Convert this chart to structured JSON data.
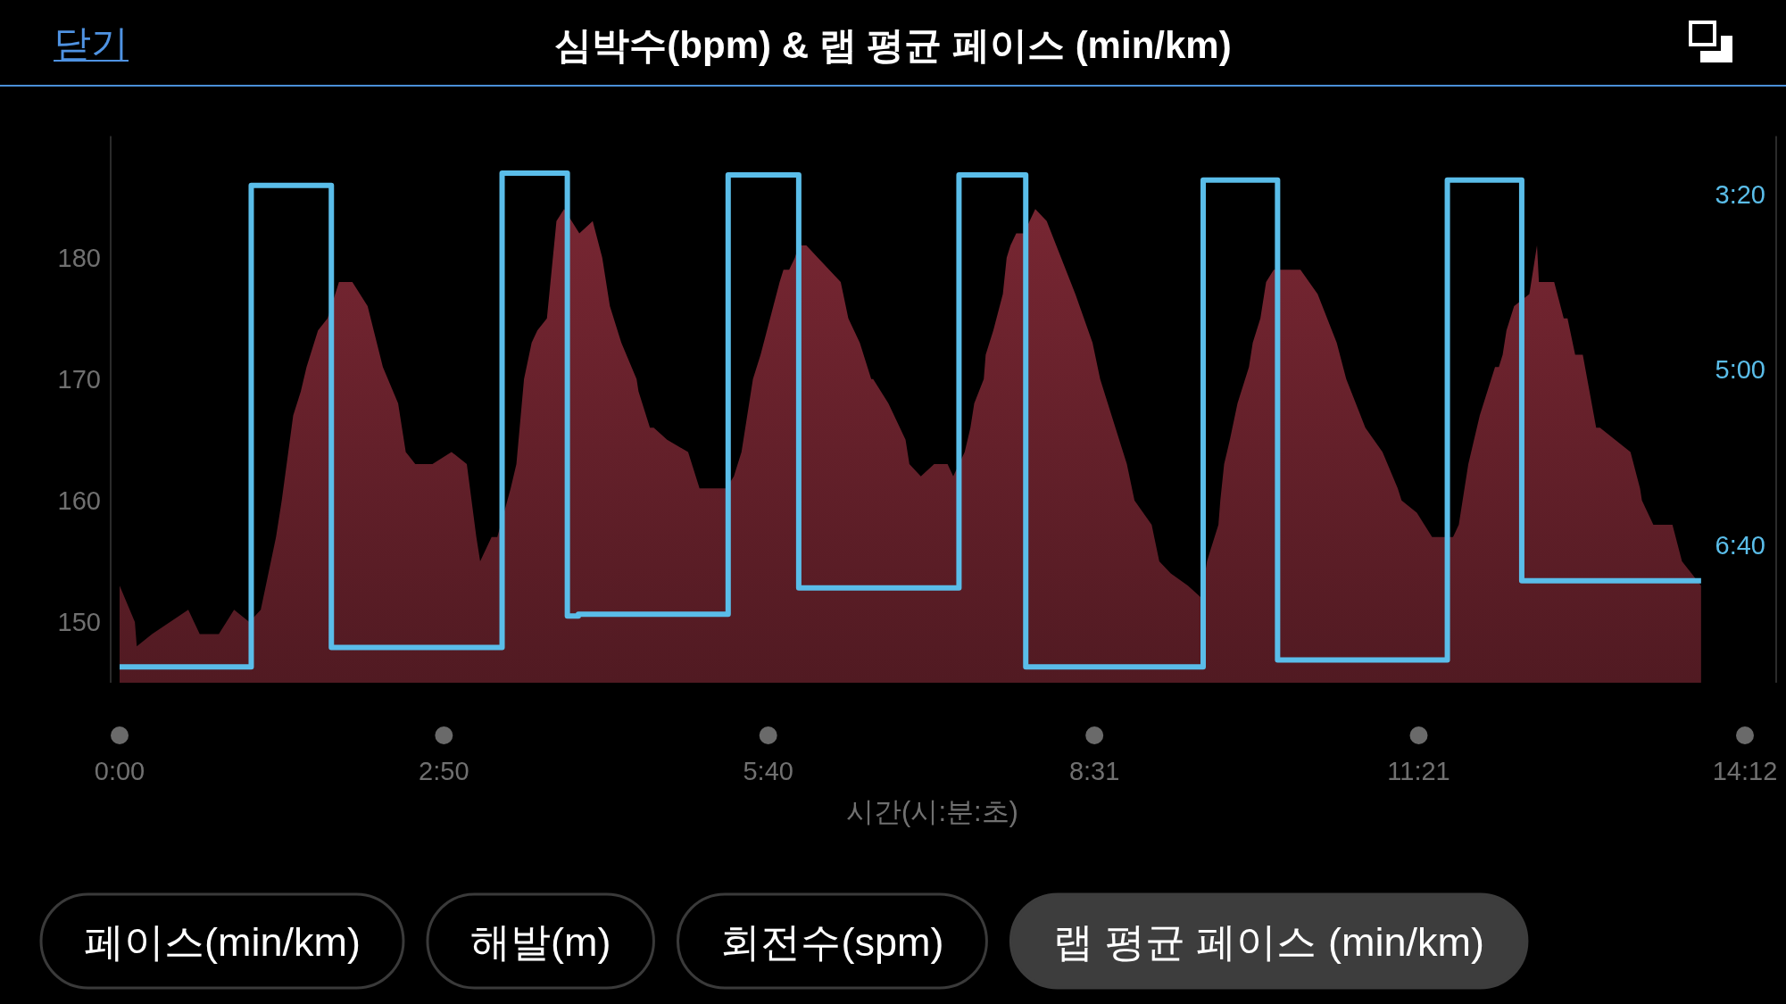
{
  "chart_data": {
    "type": "area",
    "title": "심박수(bpm) & 랩 평균 페이스 (min/km)",
    "xlabel": "시간(시:분:초)",
    "annotations": [
      "닫기",
      "페이스(min/km)",
      "해발(m)",
      "회전수(spm)",
      "랩 평균 페이스 (min/km)"
    ],
    "xlim": [
      0,
      852
    ],
    "xticks": [
      {
        "value": 0,
        "label": "0:00"
      },
      {
        "value": 170,
        "label": "2:50"
      },
      {
        "value": 340,
        "label": "5:40"
      },
      {
        "value": 511,
        "label": "8:31"
      },
      {
        "value": 681,
        "label": "11:21"
      },
      {
        "value": 852,
        "label": "14:12"
      }
    ],
    "ylim": [
      145,
      190
    ],
    "yticks": [
      150,
      160,
      170,
      180
    ],
    "y2lim": [
      478,
      167
    ],
    "y2ticks": [
      {
        "value": 200,
        "label": "3:20"
      },
      {
        "value": 300,
        "label": "5:00"
      },
      {
        "value": 400,
        "label": "6:40"
      }
    ],
    "series": [
      {
        "color": "#65202a",
        "x": [
          0,
          8,
          9,
          17,
          36,
          42,
          52,
          60,
          68,
          74,
          82,
          85,
          91,
          95,
          98,
          104,
          109,
          115,
          122,
          130,
          138,
          146,
          150,
          155,
          164,
          174,
          182,
          187,
          189,
          195,
          198,
          205,
          208,
          212,
          216,
          219,
          224,
          229,
          233,
          241,
          248,
          253,
          257,
          263,
          271,
          272,
          278,
          280,
          287,
          298,
          304,
          318,
          322,
          326,
          332,
          336,
          341,
          346,
          348,
          351,
          354,
          356,
          360,
          366,
          378,
          382,
          388,
          394,
          395,
          403,
          412,
          414,
          420,
          427,
          434,
          437,
          443,
          446,
          448,
          453,
          454,
          458,
          463,
          465,
          467,
          470,
          474,
          480,
          486,
          501,
          510,
          514,
          518,
          528,
          532,
          541,
          545,
          551,
          560,
          567,
          570,
          572,
          576,
          577,
          579,
          582,
          586,
          592,
          594,
          598,
          601,
          605,
          619,
          628,
          638,
          643,
          653,
          662,
          670,
          672,
          680,
          688,
          696,
          699,
          702,
          707,
          713,
          721,
          723,
          725,
          727,
          731,
          739,
          743,
          744,
          752,
          757,
          759,
          763,
          767,
          774,
          776,
          792,
          797,
          798,
          804,
          814,
          819,
          824,
          829
        ],
        "values": [
          153,
          150,
          148,
          149,
          151,
          149,
          149,
          151,
          150,
          151,
          157,
          160,
          167,
          169,
          171,
          174,
          175,
          178,
          178,
          176,
          171,
          168,
          164,
          163,
          163,
          164,
          163,
          157,
          155,
          157,
          157,
          161,
          163,
          170,
          173,
          174,
          175,
          183,
          184,
          182,
          183,
          180,
          176,
          173,
          170,
          169,
          166,
          166,
          165,
          164,
          161,
          161,
          162,
          164,
          170,
          172,
          175,
          178,
          179,
          179,
          180,
          181,
          181,
          180,
          178,
          175,
          173,
          170,
          170,
          168,
          165,
          163,
          162,
          163,
          163,
          162,
          164,
          166,
          168,
          170,
          172,
          174,
          177,
          180,
          181,
          182,
          182,
          184,
          183,
          177,
          173,
          170,
          168,
          163,
          160,
          158,
          155,
          154,
          153,
          152,
          155,
          156,
          158,
          160,
          163,
          165,
          168,
          171,
          173,
          175,
          178,
          179,
          179,
          177,
          173,
          170,
          166,
          164,
          161,
          160,
          159,
          157,
          157,
          157,
          158,
          163,
          167,
          171,
          171,
          172,
          174,
          176,
          177,
          181,
          178,
          178,
          175,
          175,
          172,
          172,
          166,
          166,
          164,
          161,
          160,
          158,
          158,
          155,
          154,
          153
        ]
      },
      {
        "type": "step",
        "axis": "y2",
        "color": "#5abde9",
        "x": [
          0,
          69,
          111,
          200.5,
          234.7,
          240.5,
          319,
          356,
          440,
          475,
          568,
          607,
          696,
          717,
          735,
          829
        ],
        "values": [
          469,
          195,
          458,
          188,
          440,
          439,
          189,
          424,
          189,
          469,
          192,
          465,
          192,
          192,
          420,
          420
        ]
      }
    ]
  }
}
